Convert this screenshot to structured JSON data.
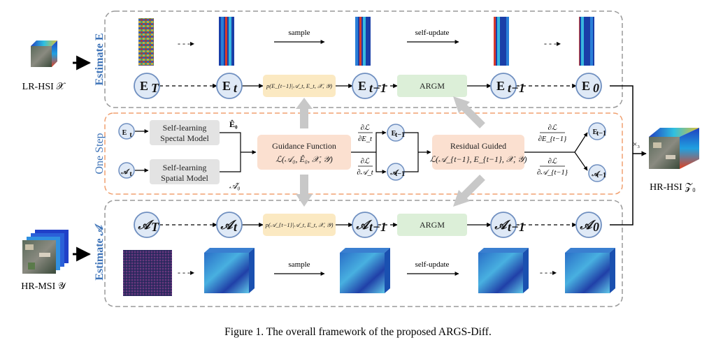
{
  "caption": "Figure 1. The overall framework of the proposed ARGS-Diff.",
  "inputs": {
    "lr_hsi": "LR-HSI 𝒳",
    "hr_msi": "HR-MSI 𝒴",
    "output": "HR-HSI 𝒵₀",
    "mode3": "×₃"
  },
  "panels": {
    "estimate_e": "Estimate E",
    "one_step": "One Step",
    "estimate_a": "Estimate 𝒜"
  },
  "top_row": {
    "nodes": [
      "E",
      "E",
      "E",
      "E",
      "E"
    ],
    "node_subs": [
      "T",
      "t",
      "t−1",
      "t−1",
      "0"
    ],
    "posterior": "p(E_{t−1}|𝒜_t, E_t, 𝒳, 𝒴)",
    "argm": "ARGM",
    "sample": "sample",
    "self_update": "self-update"
  },
  "bottom_row": {
    "nodes": [
      "𝒜",
      "𝒜",
      "𝒜",
      "𝒜",
      "𝒜"
    ],
    "node_subs": [
      "T",
      "t",
      "t−1",
      "t−1",
      "0"
    ],
    "posterior": "p(𝒜_{t−1}|𝒜_t, E_t, 𝒳, 𝒴)",
    "argm": "ARGM",
    "sample": "sample",
    "self_update": "self-update"
  },
  "middle": {
    "input_e": "E",
    "input_e_sub": "t",
    "input_a": "𝒜",
    "input_a_sub": "t",
    "spectral_line1": "Self-learning",
    "spectral_line2": "Spectal Model",
    "spatial_line1": "Self-learning",
    "spatial_line2": "Spatial Model",
    "e0_hat": "Ê₀",
    "a0_hat": "𝒜̂₀",
    "guidance_title": "Guidance Function",
    "guidance_formula": "ℒ(𝒜₀, Ê₀, 𝒳, 𝒴)",
    "grad_e_num": "∂ℒ",
    "grad_e_den": "∂E_t",
    "grad_a_num": "∂ℒ",
    "grad_a_den": "∂𝒜_t",
    "residual_title": "Residual Guided",
    "residual_formula": "ℒ(𝒜_{t−1}, E_{t−1}, 𝒳, 𝒴)",
    "grad_e2_num": "∂ℒ",
    "grad_e2_den": "∂E_{t−1}",
    "grad_a2_num": "∂ℒ",
    "grad_a2_den": "∂𝒜_{t−1}",
    "small_e": "E",
    "small_e_sub": "t−1",
    "small_a": "𝒜",
    "small_a_sub": "t−1"
  },
  "colors": {
    "panel_border": "#9a9a9a",
    "one_step_border": "#f0a070",
    "node_fill": "#dfe9f6",
    "node_stroke": "#6f8fc0",
    "posterior_fill": "#fbe9c2",
    "argm_fill": "#dcefd8",
    "model_fill": "#e3e3e3",
    "guidance_fill": "#fbe0d0",
    "label_blue": "#3f74b8"
  }
}
